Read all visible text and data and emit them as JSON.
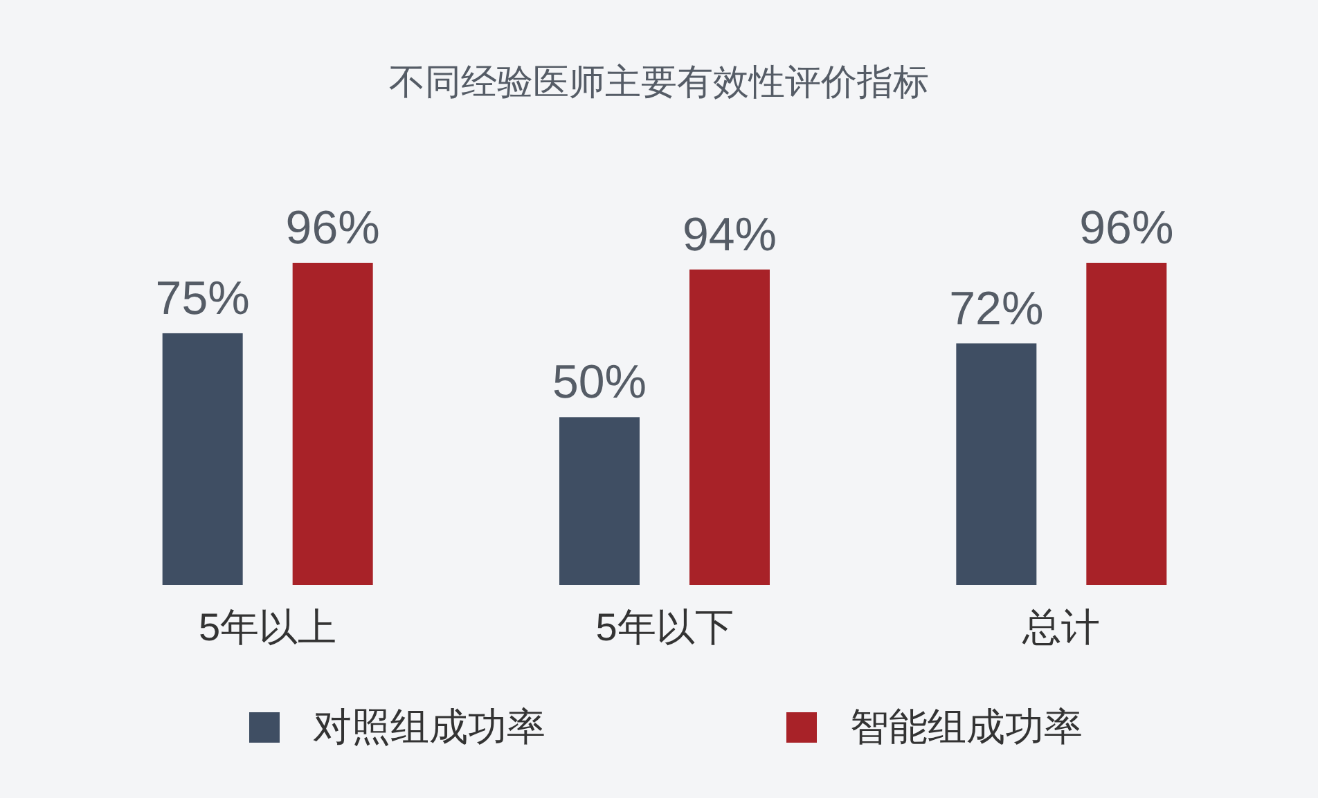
{
  "chart_data": {
    "type": "bar",
    "title": "不同经验医师主要有效性评价指标",
    "categories": [
      "5年以上",
      "5年以下",
      "总计"
    ],
    "series": [
      {
        "name": "对照组成功率",
        "color": "#3f4e63",
        "values": [
          75,
          50,
          72
        ],
        "value_labels": [
          "75%",
          "50%",
          "72%"
        ]
      },
      {
        "name": "智能组成功率",
        "color": "#a82228",
        "values": [
          96,
          94,
          96
        ],
        "value_labels": [
          "96%",
          "94%",
          "96%"
        ]
      }
    ],
    "legend": "bottom"
  }
}
